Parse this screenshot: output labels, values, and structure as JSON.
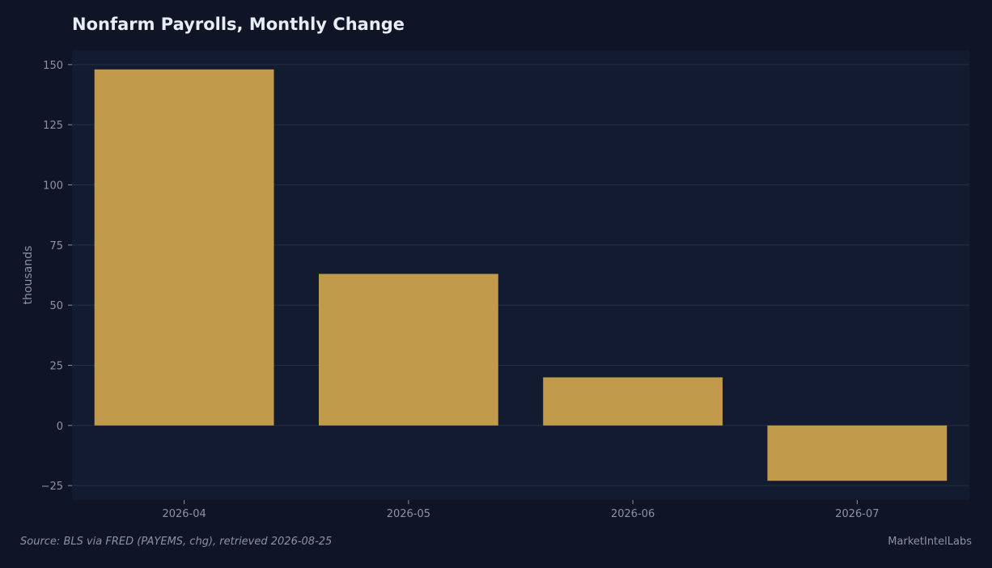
{
  "chart_data": {
    "type": "bar",
    "title": "Nonfarm Payrolls, Monthly Change",
    "xlabel": "",
    "ylabel": "thousands",
    "categories": [
      "2026-04",
      "2026-05",
      "2026-06",
      "2026-07"
    ],
    "values": [
      148,
      63,
      20,
      -23
    ],
    "ylim": [
      -31,
      156
    ],
    "yticks": [
      -25,
      0,
      25,
      50,
      75,
      100,
      125,
      150
    ],
    "ytick_labels": [
      "−25",
      "0",
      "25",
      "50",
      "75",
      "100",
      "125",
      "150"
    ],
    "grid": true,
    "legend": "none"
  },
  "footer": {
    "source": "Source: BLS via FRED (PAYEMS, chg), retrieved 2026-08-25",
    "brand": "MarketIntelLabs"
  },
  "colors": {
    "background": "#0f1426",
    "plot_background": "#121b2f",
    "bar": "#c19a4b",
    "grid": "#263044",
    "text": "#e8ecf4",
    "muted_text": "#8b93a5"
  }
}
